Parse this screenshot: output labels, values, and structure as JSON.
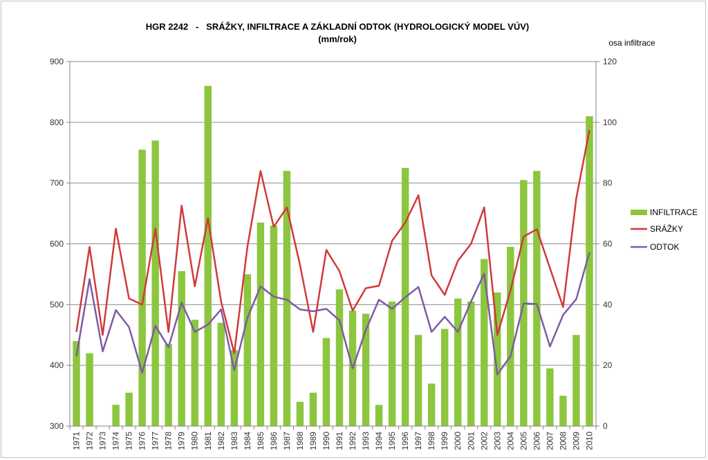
{
  "chart_data": {
    "type": "bar",
    "title": "HGR 2242   -   SRÁŽKY, INFILTRACE A ZÁKLADNÍ ODTOK (HYDROLOGICKÝ MODEL VÚV)",
    "subtitle": "(mm/rok)",
    "secondary_axis_label": "osa infiltrace",
    "categories": [
      "1971",
      "1972",
      "1973",
      "1974",
      "1975",
      "1976",
      "1977",
      "1978",
      "1979",
      "1980",
      "1981",
      "1982",
      "1983",
      "1984",
      "1985",
      "1986",
      "1987",
      "1988",
      "1989",
      "1990",
      "1991",
      "1992",
      "1993",
      "1994",
      "1995",
      "1996",
      "1997",
      "1998",
      "1999",
      "2000",
      "2001",
      "2002",
      "2003",
      "2004",
      "2005",
      "2006",
      "2007",
      "2008",
      "2009",
      "2010"
    ],
    "ylim_left": [
      300,
      900
    ],
    "yticks_left": [
      300,
      400,
      500,
      600,
      700,
      800,
      900
    ],
    "ylim_right": [
      0,
      120
    ],
    "yticks_right": [
      0,
      20,
      40,
      60,
      80,
      100,
      120
    ],
    "grid": true,
    "legend_position": "right",
    "series": [
      {
        "name": "INFILTRACE",
        "type": "bar",
        "axis": "right",
        "color": "#8cc63f",
        "values": [
          28,
          24,
          0,
          7,
          11,
          91,
          94,
          27,
          51,
          35,
          112,
          34,
          25,
          50,
          67,
          66,
          84,
          8,
          11,
          29,
          45,
          38,
          37,
          7,
          41,
          85,
          30,
          14,
          32,
          42,
          41,
          55,
          44,
          59,
          81,
          84,
          19,
          10,
          30,
          102
        ]
      },
      {
        "name": "SRÁŽKY",
        "type": "line",
        "axis": "left",
        "color": "#d0393a",
        "values": [
          455,
          595,
          450,
          625,
          510,
          500,
          625,
          455,
          663,
          530,
          642,
          505,
          420,
          595,
          720,
          628,
          660,
          565,
          455,
          590,
          555,
          490,
          527,
          531,
          605,
          635,
          680,
          548,
          516,
          572,
          600,
          660,
          450,
          523,
          612,
          624,
          560,
          496,
          675,
          787
        ]
      },
      {
        "name": "ODTOK",
        "type": "line",
        "axis": "left",
        "color": "#7e5aa6",
        "values": [
          415,
          542,
          423,
          491,
          463,
          388,
          465,
          430,
          503,
          455,
          467,
          492,
          392,
          478,
          530,
          513,
          508,
          492,
          489,
          493,
          474,
          395,
          458,
          508,
          493,
          512,
          529,
          455,
          480,
          455,
          505,
          551,
          385,
          415,
          502,
          501,
          431,
          483,
          509,
          586
        ]
      }
    ]
  }
}
